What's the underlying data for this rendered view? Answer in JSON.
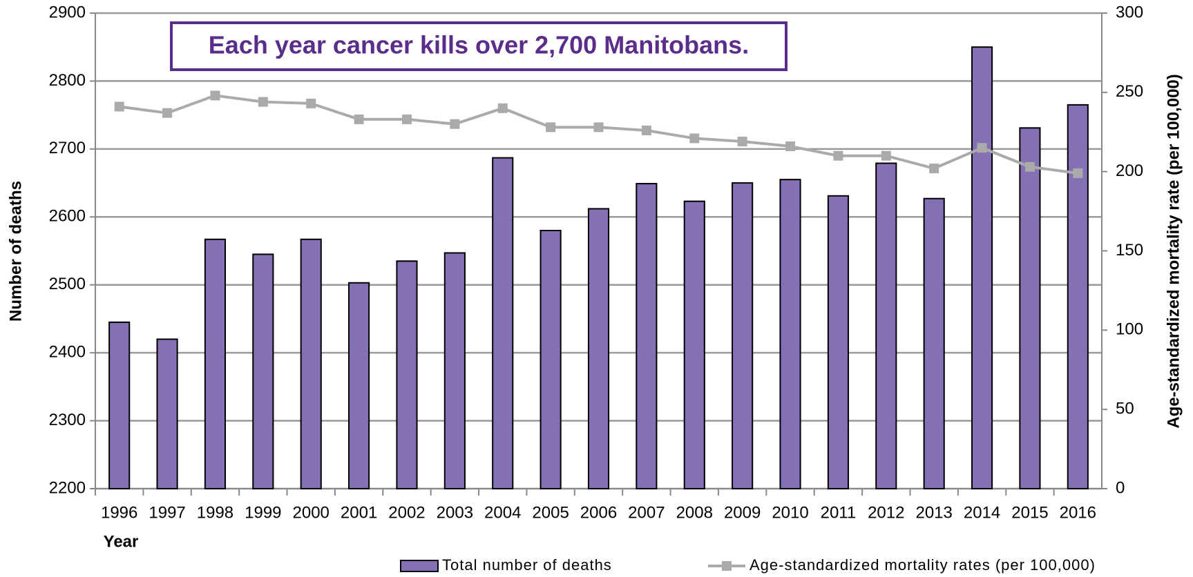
{
  "chart_data": {
    "type": "bar",
    "annotation": "Each year cancer kills over 2,700 Manitobans.",
    "x_label": "Year",
    "y_label": "Number of deaths",
    "y2_label": "Age-standardized mortality rate (per 100,000)",
    "categories": [
      "1996",
      "1997",
      "1998",
      "1999",
      "2000",
      "2001",
      "2002",
      "2003",
      "2004",
      "2005",
      "2006",
      "2007",
      "2008",
      "2009",
      "2010",
      "2011",
      "2012",
      "2013",
      "2014",
      "2015",
      "2016"
    ],
    "series": [
      {
        "name": "Total number of deaths",
        "type": "bar",
        "color": "#8470b4",
        "values": [
          2445,
          2420,
          2567,
          2545,
          2567,
          2503,
          2535,
          2547,
          2687,
          2580,
          2612,
          2649,
          2623,
          2650,
          2655,
          2631,
          2679,
          2627,
          2850,
          2731,
          2765
        ]
      },
      {
        "name": "Age-standardized mortality rates (per 100,000)",
        "type": "line",
        "axis": "y2",
        "color": "#aaaaaa",
        "values": [
          241,
          237,
          248,
          244,
          243,
          233,
          233,
          230,
          240,
          228,
          228,
          226,
          221,
          219,
          216,
          210,
          210,
          202,
          215,
          203,
          199
        ]
      }
    ],
    "ylim": [
      2200,
      2900
    ],
    "yticks": [
      2200,
      2300,
      2400,
      2500,
      2600,
      2700,
      2800,
      2900
    ],
    "y2lim": [
      0,
      300
    ],
    "y2ticks": [
      0,
      50,
      100,
      150,
      200,
      250,
      300
    ],
    "grid": true,
    "legend": "bottom"
  }
}
